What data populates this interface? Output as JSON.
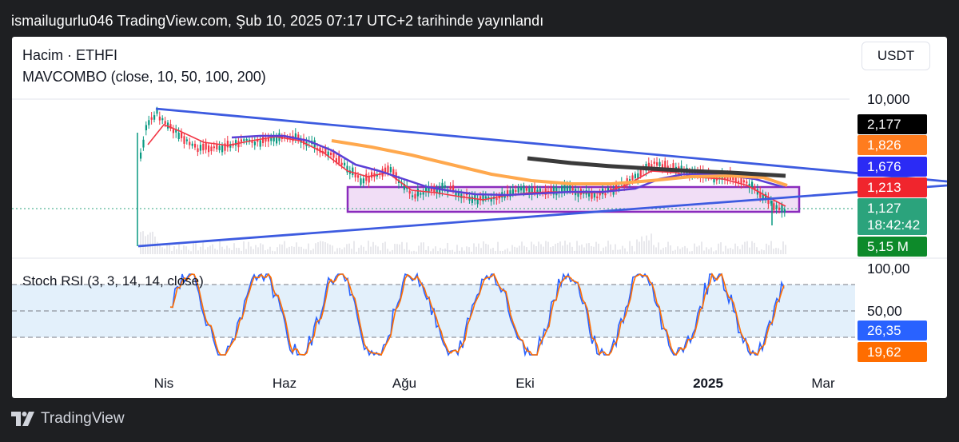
{
  "header": {
    "published": "ismailugurlu046 TradingView.com, Şub 10, 2025 07:17 UTC+2 tarihinde yayınlandı"
  },
  "legend": {
    "line1": "Hacim · ETHFI",
    "line2": "MAVCOMBO (close, 10, 50, 100, 200)"
  },
  "currency": "USDT",
  "footer": {
    "brand": "TradingView"
  },
  "colors": {
    "candle_up": "#089981",
    "candle_down": "#f23645",
    "ma10": "#f23645",
    "ma50": "#5b3fd6",
    "ma100": "#ffa84d",
    "ma200": "#3a3a3a",
    "trendline": "#3d5be0",
    "box_border": "#8a2bbd",
    "box_fill": "#e8c8f0",
    "stoch_k": "#2962ff",
    "stoch_d": "#ff6d00",
    "band_fill": "#e3f0fb"
  },
  "chart_data": [
    {
      "type": "candlestick",
      "symbol": "ETHFI",
      "scale": "log",
      "x_ticks": [
        "Nis",
        "Haz",
        "Ağu",
        "Eki",
        "2025",
        "Mar"
      ],
      "y_ticks": [
        "10,000"
      ],
      "price_badges": [
        {
          "label": "2,177",
          "color": "#000000",
          "series": "MA 200"
        },
        {
          "label": "1,826",
          "color": "#ff7c1e",
          "series": "MA 100"
        },
        {
          "label": "1,676",
          "color": "#2b2bf5",
          "series": "MA 50"
        },
        {
          "label": "1,213",
          "color": "#f0252d",
          "series": "MA 10"
        },
        {
          "label": "1,127",
          "sublabel": "18:42:42",
          "color": "#2ba37c",
          "series": "Last price"
        },
        {
          "label": "5,15 M",
          "color": "#0d8a2a",
          "series": "Volume"
        }
      ],
      "last_price": 1.127,
      "drawings": [
        "descending trendline from ~Mar high",
        "ascending trendline from listing low",
        "purple range box ~1.05–1.55"
      ]
    },
    {
      "type": "line",
      "title": "Stoch RSI (3, 3, 14, 14, close)",
      "y_ticks": [
        "100,00",
        "50,00"
      ],
      "bands": [
        80,
        50,
        20
      ],
      "series": [
        {
          "name": "K",
          "last": 26.35,
          "label": "26,35",
          "color": "#2962ff"
        },
        {
          "name": "D",
          "last": 19.62,
          "label": "19,62",
          "color": "#ff6d00"
        }
      ]
    }
  ]
}
